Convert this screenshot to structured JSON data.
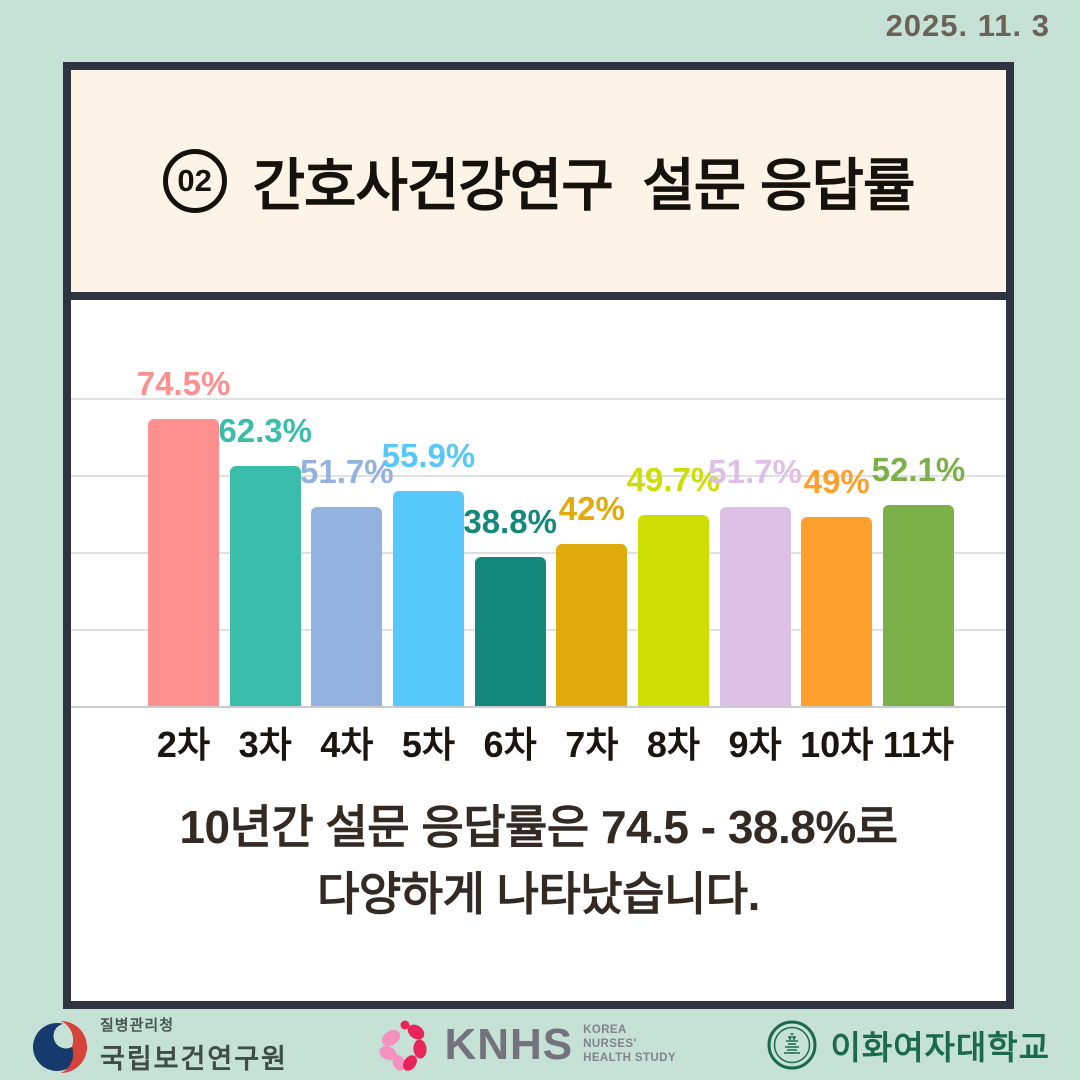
{
  "date": "2025. 11. 3",
  "header": {
    "number": "02",
    "title": "간호사건강연구  설문 응답률"
  },
  "chart_data": {
    "type": "bar",
    "title": "간호사건강연구 설문 응답률",
    "categories": [
      "2차",
      "3차",
      "4차",
      "5차",
      "6차",
      "7차",
      "8차",
      "9차",
      "10차",
      "11차"
    ],
    "values": [
      74.5,
      62.3,
      51.7,
      55.9,
      38.8,
      42,
      49.7,
      51.7,
      49,
      52.1
    ],
    "value_labels": [
      "74.5%",
      "62.3%",
      "51.7%",
      "55.9%",
      "38.8%",
      "42%",
      "49.7%",
      "51.7%",
      "49%",
      "52.1%"
    ],
    "bar_colors": [
      "#FD8F8F",
      "#3ABEAB",
      "#93B2DD",
      "#56C8FA",
      "#15887C",
      "#E1AB0E",
      "#CDDE04",
      "#DEC0E6",
      "#FDA12C",
      "#7BB148"
    ],
    "xlabel": "",
    "ylabel": "",
    "ylim": [
      0,
      80
    ],
    "grid": true,
    "gridlines": [
      20,
      40,
      60,
      80
    ],
    "legend": "none"
  },
  "caption": {
    "line1": "10년간 설문 응답률은 74.5 - 38.8%로",
    "line2": "다양하게 나타났습니다."
  },
  "footer": {
    "kdca": {
      "agency": "질병관리청",
      "institute": "국립보건연구원"
    },
    "knhs": {
      "acronym": "KNHS",
      "sub_line1": "KOREA",
      "sub_line2": "NURSES'",
      "sub_line3": "HEALTH STUDY"
    },
    "ewha": {
      "name": "이화여자대학교"
    }
  },
  "colors": {
    "page_background": "#C6E1D6",
    "card_border": "#2E3440",
    "card_background": "#FFFFFF",
    "header_background": "#FEF3E7",
    "date_text": "#6C6257",
    "caption_text": "#332A24",
    "tick_text": "#1A150F",
    "gridline": "#E0E1E3",
    "kdca_navy": "#153A6B",
    "kdca_red": "#D6433B",
    "knhs_pink_light": "#F591BE",
    "knhs_pink_deep": "#E7255B",
    "knhs_gray": "#73727D",
    "ewha_green": "#1C6A4C"
  }
}
